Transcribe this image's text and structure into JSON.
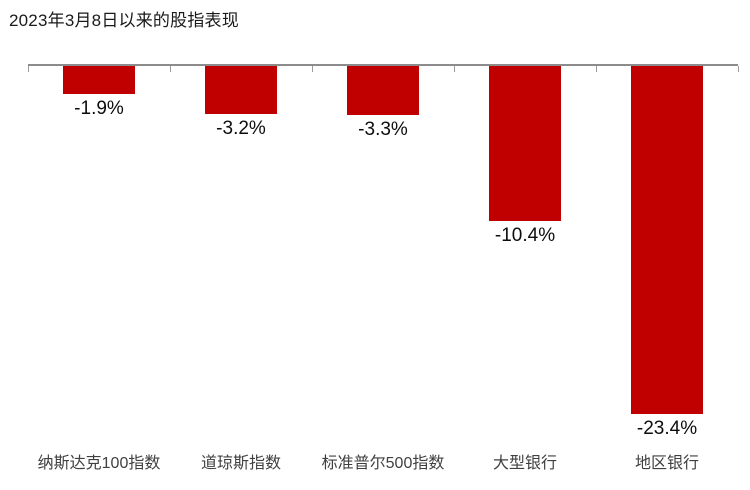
{
  "title": "2023年3月8日以来的股指表现",
  "chart_data": {
    "type": "bar",
    "title": "2023年3月8日以来的股指表现",
    "categories": [
      "纳斯达克100指数",
      "道琼斯指数",
      "标准普尔500指数",
      "大型银行",
      "地区银行"
    ],
    "values": [
      -1.9,
      -3.2,
      -3.3,
      -10.4,
      -23.4
    ],
    "value_labels": [
      "-1.9%",
      "-3.2%",
      "-3.3%",
      "-10.4%",
      "-23.4%"
    ],
    "xlabel": "",
    "ylabel": "",
    "ylim": [
      -25,
      0
    ],
    "baseline": "top",
    "grid": false,
    "legend": "none",
    "bar_color": "#C00000",
    "axis_color": "#8C8C8C",
    "tick_color": "#9A9A9A",
    "value_label_color": "#0D0D0D",
    "category_label_color": "#404040",
    "title_color": "#1A1A1A",
    "background_color": "#FFFFFF"
  }
}
